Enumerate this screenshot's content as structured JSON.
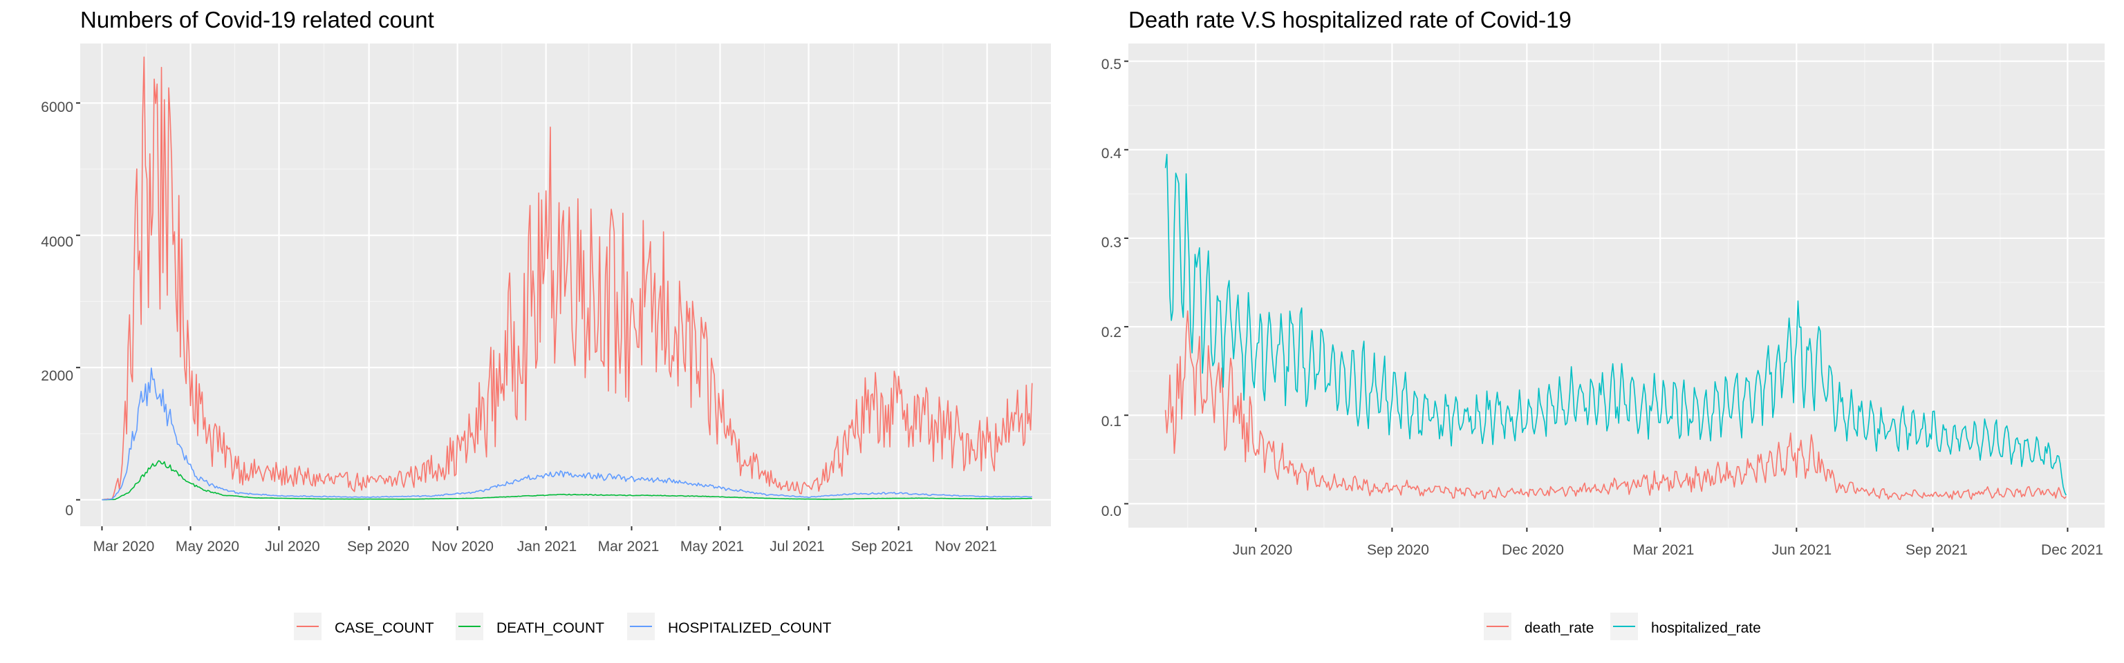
{
  "charts": [
    {
      "title": "Numbers of Covid-19 related count",
      "x_tick_labels": [
        "Mar 2020",
        "May 2020",
        "Jul 2020",
        "Sep 2020",
        "Nov 2020",
        "Jan 2021",
        "Mar 2021",
        "May 2021",
        "Jul 2021",
        "Sep 2021",
        "Nov 2021"
      ],
      "y_tick_labels": [
        "0",
        "2000",
        "4000",
        "6000"
      ],
      "legend": [
        "CASE_COUNT",
        "DEATH_COUNT",
        "HOSPITALIZED_COUNT"
      ]
    },
    {
      "title": "Death rate V.S hospitalized rate of Covid-19",
      "x_tick_labels": [
        "Jun 2020",
        "Sep 2020",
        "Dec 2020",
        "Mar 2021",
        "Jun 2021",
        "Sep 2021",
        "Dec 2021"
      ],
      "y_tick_labels": [
        "0.0",
        "0.1",
        "0.2",
        "0.3",
        "0.4",
        "0.5"
      ],
      "legend": [
        "death_rate",
        "hospitalized_rate"
      ]
    }
  ],
  "chart_data": [
    {
      "type": "line",
      "title": "Numbers of Covid-19 related count",
      "xlabel": "",
      "ylabel": "",
      "x_range": [
        "2020-02-15",
        "2021-12-15"
      ],
      "ylim": [
        -400,
        6900
      ],
      "grid": true,
      "legend_position": "bottom",
      "x_ticks": [
        "2020-03-01",
        "2020-05-01",
        "2020-07-01",
        "2020-09-01",
        "2020-11-01",
        "2021-01-01",
        "2021-03-01",
        "2021-05-01",
        "2021-07-01",
        "2021-09-01",
        "2021-11-01"
      ],
      "y_ticks": [
        0,
        2000,
        4000,
        6000
      ],
      "series": [
        {
          "name": "CASE_COUNT",
          "color": "#F8766D",
          "noise": 0.45,
          "weekly": 0.12,
          "points": [
            [
              "2020-03-01",
              0
            ],
            [
              "2020-03-08",
              20
            ],
            [
              "2020-03-15",
              450
            ],
            [
              "2020-03-22",
              2900
            ],
            [
              "2020-03-29",
              4500
            ],
            [
              "2020-04-05",
              5300
            ],
            [
              "2020-04-12",
              5200
            ],
            [
              "2020-04-19",
              4000
            ],
            [
              "2020-04-26",
              2800
            ],
            [
              "2020-05-03",
              1800
            ],
            [
              "2020-05-10",
              1200
            ],
            [
              "2020-05-24",
              700
            ],
            [
              "2020-06-07",
              450
            ],
            [
              "2020-07-01",
              370
            ],
            [
              "2020-08-01",
              300
            ],
            [
              "2020-09-01",
              260
            ],
            [
              "2020-09-20",
              300
            ],
            [
              "2020-10-10",
              440
            ],
            [
              "2020-10-25",
              580
            ],
            [
              "2020-11-10",
              900
            ],
            [
              "2020-11-25",
              1600
            ],
            [
              "2020-12-10",
              2400
            ],
            [
              "2020-12-25",
              3100
            ],
            [
              "2021-01-05",
              3800
            ],
            [
              "2021-01-20",
              3600
            ],
            [
              "2021-02-05",
              3200
            ],
            [
              "2021-02-20",
              2800
            ],
            [
              "2021-03-05",
              2800
            ],
            [
              "2021-03-25",
              2700
            ],
            [
              "2021-04-10",
              2300
            ],
            [
              "2021-04-25",
              1600
            ],
            [
              "2021-05-10",
              900
            ],
            [
              "2021-05-25",
              500
            ],
            [
              "2021-06-10",
              270
            ],
            [
              "2021-06-25",
              170
            ],
            [
              "2021-07-05",
              200
            ],
            [
              "2021-07-15",
              400
            ],
            [
              "2021-07-25",
              800
            ],
            [
              "2021-08-05",
              1200
            ],
            [
              "2021-08-20",
              1350
            ],
            [
              "2021-09-05",
              1350
            ],
            [
              "2021-09-20",
              1200
            ],
            [
              "2021-10-05",
              1000
            ],
            [
              "2021-10-20",
              850
            ],
            [
              "2021-11-05",
              900
            ],
            [
              "2021-11-20",
              1100
            ],
            [
              "2021-11-30",
              1300
            ],
            [
              "2021-12-02",
              1600
            ]
          ]
        },
        {
          "name": "DEATH_COUNT",
          "color": "#00BA38",
          "noise": 0.08,
          "weekly": 0.0,
          "points": [
            [
              "2020-03-01",
              0
            ],
            [
              "2020-03-10",
              5
            ],
            [
              "2020-03-20",
              120
            ],
            [
              "2020-03-30",
              380
            ],
            [
              "2020-04-07",
              560
            ],
            [
              "2020-04-14",
              540
            ],
            [
              "2020-04-21",
              420
            ],
            [
              "2020-04-28",
              280
            ],
            [
              "2020-05-10",
              150
            ],
            [
              "2020-05-24",
              70
            ],
            [
              "2020-06-15",
              30
            ],
            [
              "2020-08-01",
              12
            ],
            [
              "2020-10-01",
              10
            ],
            [
              "2020-11-15",
              25
            ],
            [
              "2020-12-15",
              55
            ],
            [
              "2021-01-15",
              80
            ],
            [
              "2021-02-15",
              70
            ],
            [
              "2021-03-15",
              65
            ],
            [
              "2021-04-15",
              55
            ],
            [
              "2021-05-15",
              35
            ],
            [
              "2021-06-15",
              15
            ],
            [
              "2021-07-15",
              8
            ],
            [
              "2021-08-15",
              20
            ],
            [
              "2021-09-15",
              25
            ],
            [
              "2021-10-15",
              18
            ],
            [
              "2021-11-15",
              15
            ],
            [
              "2021-12-02",
              20
            ]
          ]
        },
        {
          "name": "HOSPITALIZED_COUNT",
          "color": "#619CFF",
          "noise": 0.12,
          "weekly": 0.04,
          "points": [
            [
              "2020-03-01",
              0
            ],
            [
              "2020-03-08",
              10
            ],
            [
              "2020-03-15",
              200
            ],
            [
              "2020-03-22",
              900
            ],
            [
              "2020-03-29",
              1600
            ],
            [
              "2020-04-05",
              1750
            ],
            [
              "2020-04-12",
              1500
            ],
            [
              "2020-04-19",
              1100
            ],
            [
              "2020-04-26",
              700
            ],
            [
              "2020-05-03",
              400
            ],
            [
              "2020-05-17",
              200
            ],
            [
              "2020-06-01",
              110
            ],
            [
              "2020-07-01",
              60
            ],
            [
              "2020-09-01",
              40
            ],
            [
              "2020-10-15",
              60
            ],
            [
              "2020-11-15",
              120
            ],
            [
              "2020-12-01",
              220
            ],
            [
              "2020-12-20",
              330
            ],
            [
              "2021-01-10",
              400
            ],
            [
              "2021-02-01",
              360
            ],
            [
              "2021-03-01",
              320
            ],
            [
              "2021-04-01",
              280
            ],
            [
              "2021-05-01",
              180
            ],
            [
              "2021-06-01",
              80
            ],
            [
              "2021-07-01",
              40
            ],
            [
              "2021-08-01",
              90
            ],
            [
              "2021-09-01",
              100
            ],
            [
              "2021-10-01",
              70
            ],
            [
              "2021-11-01",
              50
            ],
            [
              "2021-12-02",
              45
            ]
          ]
        }
      ]
    },
    {
      "type": "line",
      "title": "Death rate V.S hospitalized rate of Covid-19",
      "xlabel": "",
      "ylabel": "",
      "x_range": [
        "2020-03-07",
        "2021-12-26"
      ],
      "ylim": [
        -0.027,
        0.52
      ],
      "grid": true,
      "legend_position": "bottom",
      "x_ticks": [
        "2020-06-01",
        "2020-09-01",
        "2020-12-01",
        "2021-03-01",
        "2021-06-01",
        "2021-09-01",
        "2021-12-01"
      ],
      "y_ticks": [
        0.0,
        0.1,
        0.2,
        0.3,
        0.4,
        0.5
      ],
      "series": [
        {
          "name": "death_rate",
          "color": "#F8766D",
          "noise": 0.35,
          "weekly": 0.25,
          "points": [
            [
              "2020-04-01",
              0.09
            ],
            [
              "2020-04-08",
              0.12
            ],
            [
              "2020-04-15",
              0.15
            ],
            [
              "2020-04-22",
              0.14
            ],
            [
              "2020-04-29",
              0.13
            ],
            [
              "2020-05-06",
              0.12
            ],
            [
              "2020-05-20",
              0.1
            ],
            [
              "2020-06-03",
              0.07
            ],
            [
              "2020-06-17",
              0.045
            ],
            [
              "2020-07-01",
              0.035
            ],
            [
              "2020-07-15",
              0.025
            ],
            [
              "2020-08-01",
              0.02
            ],
            [
              "2020-09-01",
              0.018
            ],
            [
              "2020-10-01",
              0.015
            ],
            [
              "2020-11-01",
              0.012
            ],
            [
              "2020-12-01",
              0.012
            ],
            [
              "2021-01-01",
              0.015
            ],
            [
              "2021-02-01",
              0.02
            ],
            [
              "2021-03-01",
              0.025
            ],
            [
              "2021-04-01",
              0.028
            ],
            [
              "2021-05-01",
              0.035
            ],
            [
              "2021-05-20",
              0.045
            ],
            [
              "2021-06-01",
              0.06
            ],
            [
              "2021-06-15",
              0.045
            ],
            [
              "2021-07-01",
              0.02
            ],
            [
              "2021-08-01",
              0.01
            ],
            [
              "2021-09-01",
              0.01
            ],
            [
              "2021-10-01",
              0.012
            ],
            [
              "2021-11-01",
              0.013
            ],
            [
              "2021-11-25",
              0.012
            ],
            [
              "2021-11-30",
              0.01
            ]
          ]
        },
        {
          "name": "hospitalized_rate",
          "color": "#00BFC4",
          "noise": 0.15,
          "weekly": 0.22,
          "points": [
            [
              "2020-04-01",
              0.3
            ],
            [
              "2020-04-08",
              0.32
            ],
            [
              "2020-04-15",
              0.28
            ],
            [
              "2020-04-22",
              0.25
            ],
            [
              "2020-05-01",
              0.21
            ],
            [
              "2020-05-15",
              0.19
            ],
            [
              "2020-06-01",
              0.175
            ],
            [
              "2020-07-01",
              0.165
            ],
            [
              "2020-08-01",
              0.145
            ],
            [
              "2020-09-01",
              0.12
            ],
            [
              "2020-10-01",
              0.1
            ],
            [
              "2020-11-01",
              0.095
            ],
            [
              "2020-12-01",
              0.1
            ],
            [
              "2021-01-01",
              0.115
            ],
            [
              "2021-02-01",
              0.12
            ],
            [
              "2021-03-01",
              0.11
            ],
            [
              "2021-04-01",
              0.1
            ],
            [
              "2021-05-01",
              0.12
            ],
            [
              "2021-05-20",
              0.16
            ],
            [
              "2021-06-01",
              0.175
            ],
            [
              "2021-06-15",
              0.16
            ],
            [
              "2021-07-01",
              0.1
            ],
            [
              "2021-08-01",
              0.085
            ],
            [
              "2021-09-01",
              0.08
            ],
            [
              "2021-10-01",
              0.075
            ],
            [
              "2021-11-01",
              0.065
            ],
            [
              "2021-11-25",
              0.05
            ],
            [
              "2021-11-30",
              0.01
            ]
          ]
        }
      ]
    }
  ]
}
